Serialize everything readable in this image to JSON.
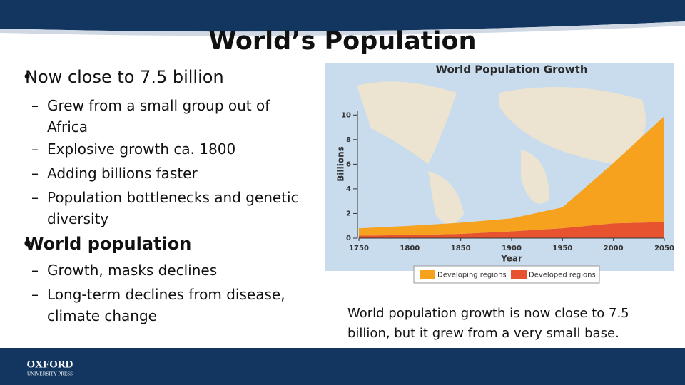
{
  "slide": {
    "title": "World’s Population",
    "bullets": [
      {
        "text": "Now close to 7.5 billion",
        "subbullets": [
          "Grew from a small group out of Africa",
          "Explosive growth ca. 1800",
          "Adding billions faster",
          "Population bottlenecks and genetic diversity"
        ]
      },
      {
        "text": "World population",
        "subbullets": [
          "Growth, masks declines",
          "Long-term declines from disease, climate change"
        ]
      }
    ],
    "caption": "World population growth is now close to 7.5 billion, but it grew from a very small base.",
    "logo": {
      "name": "OXFORD",
      "subtitle": "UNIVERSITY PRESS"
    }
  },
  "chart_data": {
    "type": "stacked-area",
    "title": "World Population Growth",
    "x_label": "Year",
    "y_label": "Billions",
    "x": [
      1750,
      1800,
      1850,
      1900,
      1950,
      2000,
      2050
    ],
    "series": [
      {
        "name": "Developed regions",
        "color": "#e8532f",
        "values": [
          0.2,
          0.25,
          0.35,
          0.55,
          0.8,
          1.2,
          1.3
        ]
      },
      {
        "name": "Developing regions",
        "color": "#f6a21e",
        "values": [
          0.6,
          0.75,
          0.9,
          1.05,
          1.7,
          4.9,
          8.6
        ]
      }
    ],
    "xlim": [
      1750,
      2050
    ],
    "xticks": [
      1750,
      1800,
      1850,
      1900,
      1950,
      2000,
      2050
    ],
    "ylim": [
      0,
      11
    ],
    "yticks": [
      0,
      2,
      4,
      6,
      8,
      10
    ]
  }
}
